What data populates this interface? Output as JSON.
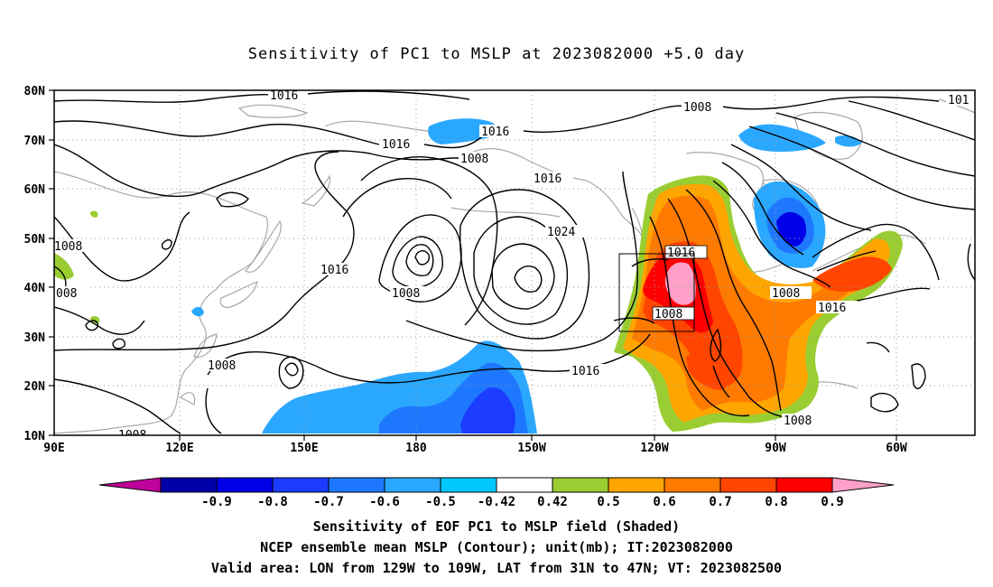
{
  "title": "Sensitivity of PC1 to MSLP at 2023082000 +5.0 day",
  "map": {
    "lat_range": [
      10,
      80
    ],
    "lon_range_east": [
      90,
      310
    ],
    "lat_ticks": [
      "10N",
      "20N",
      "30N",
      "40N",
      "50N",
      "60N",
      "70N",
      "80N"
    ],
    "lon_ticks": [
      "90E",
      "120E",
      "150E",
      "180",
      "150W",
      "120W",
      "90W",
      "60W"
    ],
    "gridlines": "dotted",
    "valid_box": {
      "lon_west": [
        129,
        109
      ],
      "lat": [
        31,
        47
      ]
    }
  },
  "contour_labels": [
    "1016",
    "1016",
    "1016",
    "1008",
    "1016",
    "1024",
    "1016",
    "1008",
    "1008",
    "1008",
    "1016",
    "1016",
    "1008",
    "1008",
    "1008",
    "1016",
    "1008",
    "1008",
    "1008",
    "101"
  ],
  "colorbar": {
    "labels": [
      "-0.9",
      "-0.8",
      "-0.7",
      "-0.6",
      "-0.5",
      "-0.42",
      "0.42",
      "0.5",
      "0.6",
      "0.7",
      "0.8",
      "0.9"
    ],
    "colors": [
      "#c0009a",
      "#0000a8",
      "#0000e6",
      "#1c3cff",
      "#1e78ff",
      "#2aa8ff",
      "#00c8ff",
      "#ffffff",
      "#9acd32",
      "#ffa500",
      "#ff7a00",
      "#ff4500",
      "#ff0000",
      "#ffa0c8"
    ]
  },
  "captions": [
    "Sensitivity of EOF PC1 to MSLP field (Shaded)",
    "NCEP ensemble mean MSLP (Contour); unit(mb); IT:2023082000",
    "Valid area: LON from 129W to 109W, LAT from 31N to 47N; VT: 2023082500"
  ]
}
